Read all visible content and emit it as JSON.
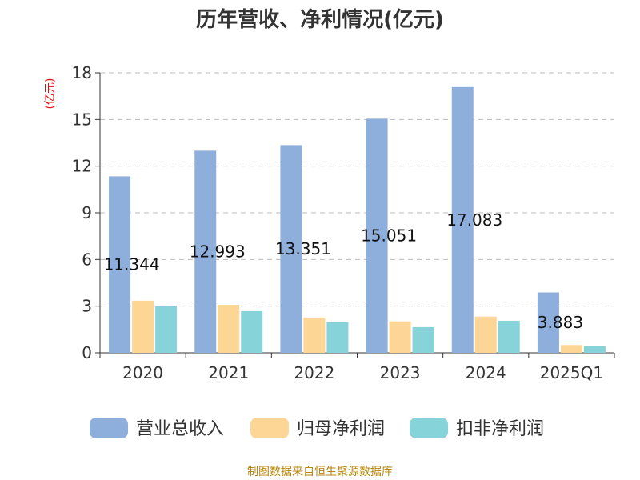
{
  "chart_data": {
    "type": "bar",
    "title": "历年营收、净利情况(亿元)",
    "unit_label": "(亿元)",
    "source": "制图数据来自恒生聚源数据库",
    "categories": [
      "2020",
      "2021",
      "2022",
      "2023",
      "2024",
      "2025Q1"
    ],
    "series": [
      {
        "name": "营业总收入",
        "values": [
          11.344,
          12.993,
          13.351,
          15.051,
          17.083,
          3.883
        ],
        "color": "#8eaedb",
        "labels": [
          "11.344",
          "12.993",
          "13.351",
          "15.051",
          "17.083",
          "3.883"
        ]
      },
      {
        "name": "归母净利润",
        "values": [
          3.35,
          3.08,
          2.27,
          2.02,
          2.33,
          0.5
        ],
        "color": "#fdd594"
      },
      {
        "name": "扣非净利润",
        "values": [
          3.03,
          2.68,
          1.97,
          1.65,
          2.06,
          0.44
        ],
        "color": "#86d3da"
      }
    ],
    "ylim": [
      0,
      18
    ],
    "yticks": [
      "0",
      "3",
      "6",
      "9",
      "12",
      "15",
      "18"
    ],
    "grid": true,
    "legend_position": "bottom"
  }
}
